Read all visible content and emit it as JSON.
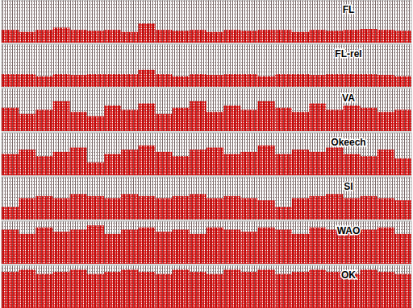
{
  "chart_data": {
    "type": "bar",
    "tick_labels": false,
    "ylim": [
      0,
      1
    ],
    "categories": [
      null,
      null,
      null,
      null,
      null,
      null,
      null,
      null,
      null,
      null,
      null,
      null,
      null,
      null,
      null,
      null,
      null,
      null,
      null,
      null,
      null,
      null,
      null,
      null
    ],
    "series": [
      {
        "name": "FL",
        "color": "#d40000",
        "values": [
          0.3,
          0.25,
          0.3,
          0.35,
          0.3,
          0.28,
          0.3,
          0.25,
          0.45,
          0.3,
          0.28,
          0.3,
          0.25,
          0.3,
          0.28,
          0.3,
          0.3,
          0.25,
          0.3,
          0.28,
          0.3,
          0.32,
          0.3,
          0.28
        ]
      },
      {
        "name": "FL-rel",
        "color": "#d40000",
        "values": [
          0.3,
          0.3,
          0.25,
          0.3,
          0.28,
          0.3,
          0.3,
          0.3,
          0.4,
          0.3,
          0.25,
          0.3,
          0.28,
          0.3,
          0.3,
          0.25,
          0.3,
          0.3,
          0.28,
          0.3,
          0.3,
          0.3,
          0.28,
          0.25
        ]
      },
      {
        "name": "VA",
        "color": "#d40000",
        "values": [
          0.55,
          0.4,
          0.5,
          0.7,
          0.45,
          0.35,
          0.6,
          0.5,
          0.65,
          0.4,
          0.55,
          0.7,
          0.45,
          0.6,
          0.5,
          0.7,
          0.55,
          0.45,
          0.65,
          0.5,
          0.6,
          0.55,
          0.45,
          0.5
        ]
      },
      {
        "name": "Okeech",
        "color": "#d40000",
        "values": [
          0.5,
          0.6,
          0.45,
          0.55,
          0.65,
          0.3,
          0.5,
          0.6,
          0.7,
          0.55,
          0.45,
          0.6,
          0.65,
          0.5,
          0.55,
          0.7,
          0.5,
          0.6,
          0.55,
          0.65,
          0.5,
          0.45,
          0.6,
          0.4
        ]
      },
      {
        "name": "SI",
        "color": "#d40000",
        "values": [
          0.3,
          0.5,
          0.55,
          0.5,
          0.6,
          0.55,
          0.5,
          0.6,
          0.55,
          0.5,
          0.55,
          0.6,
          0.5,
          0.55,
          0.5,
          0.45,
          0.3,
          0.5,
          0.55,
          0.6,
          0.5,
          0.55,
          0.5,
          0.45
        ]
      },
      {
        "name": "WAO",
        "color": "#d40000",
        "values": [
          0.8,
          0.7,
          0.85,
          0.75,
          0.8,
          0.9,
          0.7,
          0.8,
          0.85,
          0.75,
          0.8,
          0.7,
          0.85,
          0.8,
          0.75,
          0.85,
          0.8,
          0.7,
          0.85,
          0.8,
          0.75,
          0.8,
          0.85,
          0.7
        ]
      },
      {
        "name": "OK",
        "color": "#d40000",
        "values": [
          0.85,
          0.9,
          0.8,
          0.85,
          0.9,
          0.8,
          0.85,
          0.9,
          0.85,
          0.8,
          0.9,
          0.85,
          0.8,
          0.9,
          0.85,
          0.9,
          0.8,
          0.85,
          0.9,
          0.85,
          0.8,
          0.9,
          0.85,
          0.8
        ]
      }
    ]
  }
}
